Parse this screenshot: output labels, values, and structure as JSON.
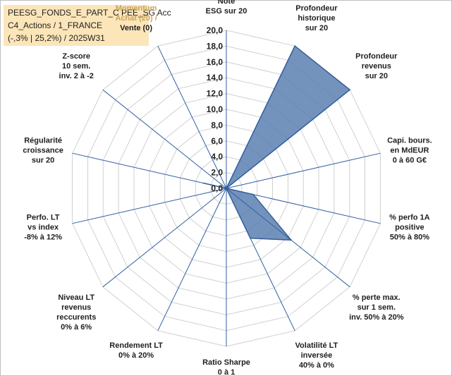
{
  "header": {
    "lines": [
      "PEESG_FONDS_E_PART_C PEE_SG Acc",
      "C4_Actions / 1_FRANCE",
      "(-,3% | 25,2%) / 2025W31"
    ]
  },
  "chart_data": {
    "type": "radar",
    "title": "",
    "rmin": 0,
    "rmax": 20,
    "tick_step": 2,
    "tick_labels": [
      "0,0",
      "2,0",
      "4,0",
      "6,0",
      "8,0",
      "10,0",
      "12,0",
      "14,0",
      "16,0",
      "18,0",
      "20,0"
    ],
    "axes": [
      {
        "label": [
          "Note",
          "ESG sur 20"
        ]
      },
      {
        "label": [
          "Profondeur",
          "historique",
          "sur 20"
        ]
      },
      {
        "label": [
          "Profondeur",
          "revenus",
          "sur 20"
        ]
      },
      {
        "label": [
          "Capi. bours.",
          "en MdEUR",
          "0 à 60 G€"
        ]
      },
      {
        "label": [
          "% perfo 1A",
          "positive",
          "50% à 80%"
        ]
      },
      {
        "label": [
          "% perte max.",
          "sur 1 sem.",
          "inv. 50% à 20%"
        ]
      },
      {
        "label": [
          "Volatilité LT",
          "inversée",
          "40% à 0%"
        ]
      },
      {
        "label": [
          "Ratio Sharpe",
          "0 à 1"
        ]
      },
      {
        "label": [
          "Rendement LT",
          "0% à 20%"
        ]
      },
      {
        "label": [
          "Niveau LT",
          "revenus",
          "reccurents",
          "0% à 6%"
        ]
      },
      {
        "label": [
          "Perfo. LT",
          "vs index",
          "-8% à 12%"
        ]
      },
      {
        "label": [
          "Régularité",
          "croissance",
          "sur 20"
        ]
      },
      {
        "label": [
          "Z-score",
          "10 sem.",
          "inv. 2 à -2"
        ]
      },
      {
        "label": [
          "Momentum",
          "Achat (20) /",
          "Vente (0)"
        ],
        "highlight_lines": 2
      }
    ],
    "series": [
      {
        "values": [
          0,
          20,
          20,
          0,
          3.5,
          10.5,
          7,
          0,
          0,
          0,
          0,
          3,
          0,
          0
        ]
      }
    ],
    "colors": {
      "fill": "#5b80b2",
      "stroke": "#3a5f94",
      "grid": "#d0d0d0",
      "spoke": "#2f5fa3",
      "label_highlight": "#c9a45c"
    }
  }
}
